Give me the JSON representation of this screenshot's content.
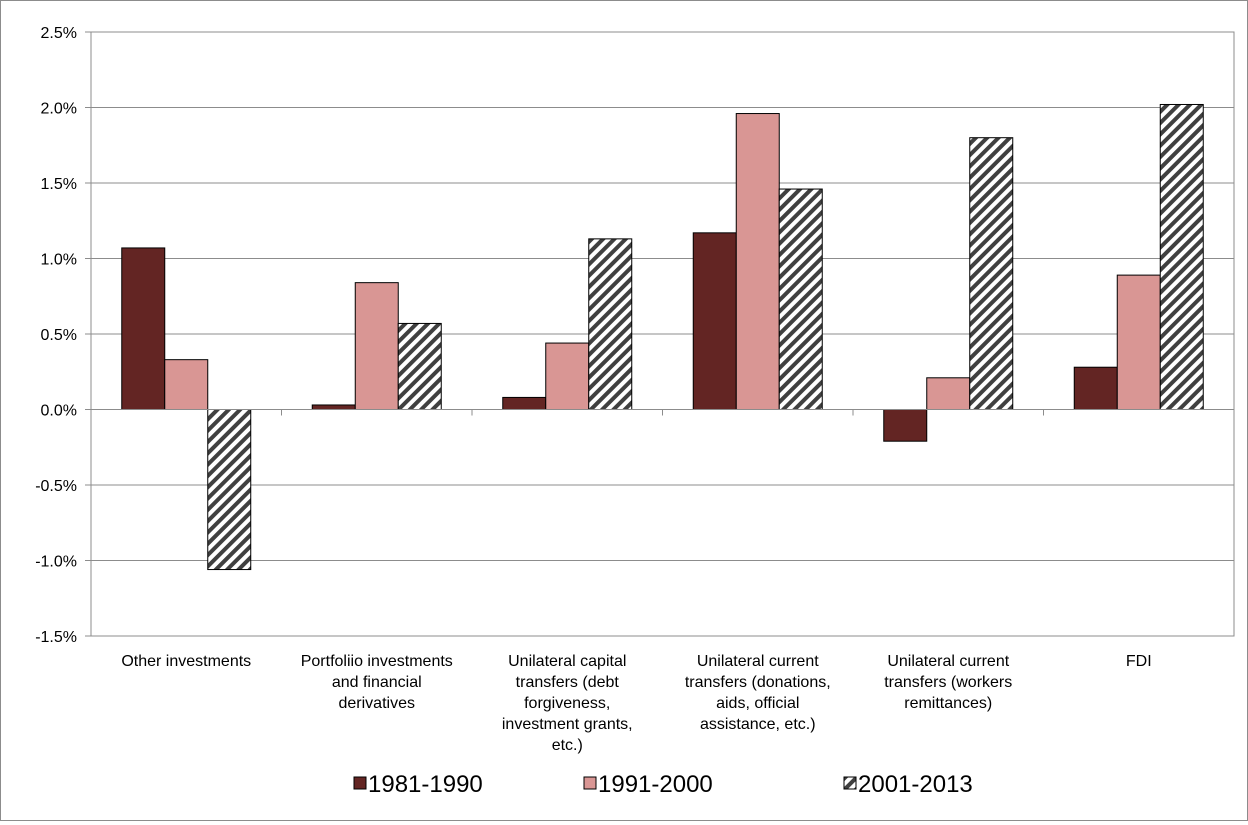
{
  "chart_data": {
    "type": "bar",
    "title": "",
    "xlabel": "",
    "ylabel": "",
    "ylim": [
      -1.5,
      2.5
    ],
    "y_ticks": [
      "2.5%",
      "2.0%",
      "1.5%",
      "1.0%",
      "0.5%",
      "0.0%",
      "-0.5%",
      "-1.0%",
      "-1.5%"
    ],
    "y_tick_values": [
      2.5,
      2.0,
      1.5,
      1.0,
      0.5,
      0.0,
      -0.5,
      -1.0,
      -1.5
    ],
    "grid": true,
    "legend_position": "bottom",
    "categories": [
      [
        "Other investments"
      ],
      [
        "Portfoliio investments",
        "and financial",
        "derivatives"
      ],
      [
        "Unilateral capital",
        "transfers (debt",
        "forgiveness,",
        "investment grants,",
        "etc.)"
      ],
      [
        "Unilateral current",
        "transfers (donations,",
        "aids, official",
        "assistance, etc.)"
      ],
      [
        "Unilateral current",
        "transfers (workers",
        "remittances)"
      ],
      [
        "FDI"
      ]
    ],
    "series": [
      {
        "name": "1981-1990",
        "color": "#632523",
        "pattern": "solid",
        "values": [
          1.07,
          0.03,
          0.08,
          1.17,
          -0.21,
          0.28
        ]
      },
      {
        "name": "1991-2000",
        "color": "#d99694",
        "pattern": "solid",
        "values": [
          0.33,
          0.84,
          0.44,
          1.96,
          0.21,
          0.89
        ]
      },
      {
        "name": "2001-2013",
        "color": "#404040",
        "pattern": "diagonal-hatch",
        "values": [
          -1.06,
          0.57,
          1.13,
          1.46,
          1.8,
          2.02
        ]
      }
    ]
  }
}
